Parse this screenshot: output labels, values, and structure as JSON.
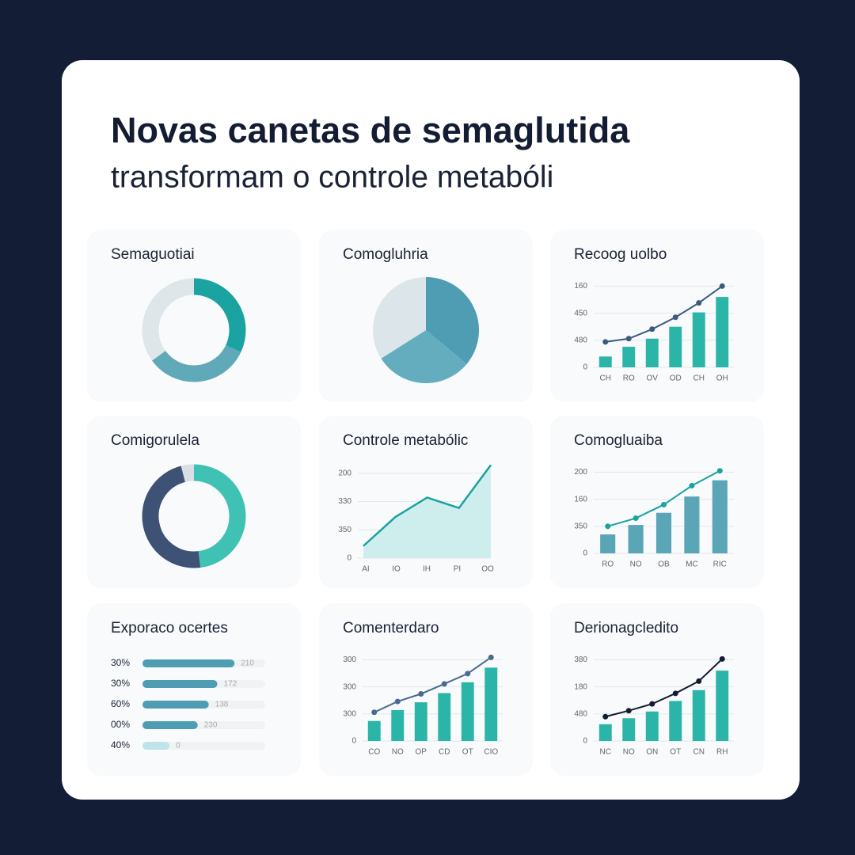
{
  "header": {
    "title": "Novas canetas de semaglutida",
    "subtitle": "transformam o controle metabóli"
  },
  "chart_data": [
    {
      "type": "donut",
      "title": "Semaguotiai",
      "values": [
        32,
        33,
        35
      ],
      "colors": [
        "#1aa3a0",
        "#5fa9b8",
        "#dfe6ea"
      ]
    },
    {
      "type": "pie",
      "title": "Comogluhria",
      "values": [
        36,
        30,
        34
      ],
      "colors": [
        "#4e9db3",
        "#63adbf",
        "#dce5ea"
      ]
    },
    {
      "type": "bar_line",
      "title": "Recoog uolbo",
      "categories": [
        "CH",
        "RO",
        "OV",
        "OD",
        "CH",
        "OH"
      ],
      "series": [
        {
          "type": "bar",
          "color": "#2bb5a8",
          "values": [
            0.4,
            0.76,
            1.06,
            1.5,
            2.03,
            2.6
          ]
        },
        {
          "type": "line",
          "color": "#3d5a80",
          "values": [
            0.94,
            1.06,
            1.41,
            1.85,
            2.38,
            3.0
          ]
        }
      ],
      "ylim": [
        0,
        3.1
      ],
      "yticks": [
        0,
        {
          "value": 1,
          "label": "480"
        },
        {
          "value": 2,
          "label": "450"
        },
        {
          "value": 3,
          "label": "160"
        }
      ],
      "grid": true
    },
    {
      "type": "donut",
      "title": "Comigorulela",
      "values": [
        48,
        48,
        4
      ],
      "colors": [
        "#3fc1b4",
        "#3d5275",
        "#d9dfe4"
      ]
    },
    {
      "type": "area",
      "title": "Controle metabólic",
      "categories": [
        "AI",
        "IO",
        "IH",
        "PI",
        "OO"
      ],
      "series": [
        {
          "color": "#1aa3a0",
          "fill": "#cdeeed",
          "values": [
            0.43,
            1.45,
            2.14,
            1.77,
            3.29
          ]
        }
      ],
      "ylim": [
        0,
        3.3
      ],
      "yticks": [
        0,
        {
          "value": 1,
          "label": "350"
        },
        {
          "value": 2,
          "label": "330"
        },
        {
          "value": 3,
          "label": "200"
        }
      ],
      "grid": true
    },
    {
      "type": "bar_line",
      "title": "Comogluaiba",
      "categories": [
        "RO",
        "NO",
        "OB",
        "MC",
        "RIC"
      ],
      "series": [
        {
          "type": "bar",
          "color": "#5aa5b6",
          "values": [
            0.7,
            1.05,
            1.5,
            2.1,
            2.7
          ]
        },
        {
          "type": "line",
          "color": "#1aa3a0",
          "values": [
            1.0,
            1.3,
            1.8,
            2.5,
            3.05
          ]
        }
      ],
      "ylim": [
        0,
        3.1
      ],
      "yticks": [
        0,
        {
          "value": 1,
          "label": "350"
        },
        {
          "value": 2,
          "label": "160"
        },
        {
          "value": 3,
          "label": "200"
        }
      ],
      "grid": true
    },
    {
      "type": "hbar",
      "title": "Exporaco ocertes",
      "categories": [
        "30%",
        "30%",
        "60%",
        "00%",
        "40%"
      ],
      "values": [
        75,
        61,
        54,
        45,
        22
      ],
      "annotations": [
        "210",
        "172",
        "138",
        "230",
        "0"
      ],
      "color": "#4e9db3",
      "xlim": [
        0,
        100
      ]
    },
    {
      "type": "bar_line",
      "title": "Comenterdaro",
      "categories": [
        "CO",
        "NO",
        "OP",
        "CD",
        "OT",
        "CIO"
      ],
      "series": [
        {
          "type": "bar",
          "color": "#2bb5a8",
          "values": [
            0.74,
            1.14,
            1.43,
            1.77,
            2.17,
            2.71
          ]
        },
        {
          "type": "line",
          "color": "#4a6a90",
          "values": [
            1.06,
            1.46,
            1.74,
            2.11,
            2.49,
            3.09
          ]
        }
      ],
      "ylim": [
        0,
        3.1
      ],
      "yticks": [
        0,
        {
          "value": 1,
          "label": "300"
        },
        {
          "value": 2,
          "label": "300"
        },
        {
          "value": 3,
          "label": "300"
        }
      ],
      "grid": true
    },
    {
      "type": "bar_line",
      "title": "Derionagcledito",
      "categories": [
        "NC",
        "NO",
        "ON",
        "OT",
        "CN",
        "RH"
      ],
      "series": [
        {
          "type": "bar",
          "color": "#2bb5a8",
          "values": [
            0.62,
            0.84,
            1.09,
            1.48,
            1.88,
            2.6
          ]
        },
        {
          "type": "line",
          "color": "#141c33",
          "values": [
            0.9,
            1.12,
            1.37,
            1.76,
            2.21,
            3.03
          ]
        }
      ],
      "ylim": [
        0,
        3.1
      ],
      "yticks": [
        0,
        {
          "value": 1,
          "label": "480"
        },
        {
          "value": 2,
          "label": "180"
        },
        {
          "value": 3,
          "label": "380"
        }
      ],
      "grid": true
    }
  ]
}
